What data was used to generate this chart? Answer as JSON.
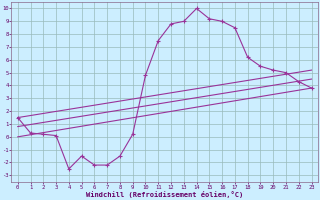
{
  "xlabel": "Windchill (Refroidissement éolien,°C)",
  "bg_color": "#cceeff",
  "line_color": "#993399",
  "grid_color": "#99bbbb",
  "x_ticks": [
    0,
    1,
    2,
    3,
    4,
    5,
    6,
    7,
    8,
    9,
    10,
    11,
    12,
    13,
    14,
    15,
    16,
    17,
    18,
    19,
    20,
    21,
    22,
    23
  ],
  "y_ticks": [
    -3,
    -2,
    -1,
    0,
    1,
    2,
    3,
    4,
    5,
    6,
    7,
    8,
    9,
    10
  ],
  "ylim": [
    -3.5,
    10.5
  ],
  "xlim": [
    -0.5,
    23.5
  ],
  "series1_x": [
    0,
    1,
    2,
    3,
    4,
    5,
    6,
    7,
    8,
    9,
    10,
    11,
    12,
    13,
    14,
    15,
    16,
    17,
    18,
    19,
    20,
    21,
    22,
    23
  ],
  "series1_y": [
    1.5,
    0.3,
    0.2,
    0.1,
    -2.5,
    -1.5,
    -2.2,
    -2.2,
    -1.5,
    0.2,
    4.8,
    7.5,
    8.8,
    9.0,
    10.0,
    9.2,
    9.0,
    8.5,
    6.2,
    5.5,
    5.2,
    5.0,
    4.3,
    3.8
  ],
  "series2_x": [
    0,
    23
  ],
  "series2_y": [
    1.5,
    5.2
  ],
  "series3_x": [
    0,
    23
  ],
  "series3_y": [
    0.8,
    4.5
  ],
  "series4_x": [
    0,
    23
  ],
  "series4_y": [
    0.0,
    3.8
  ]
}
